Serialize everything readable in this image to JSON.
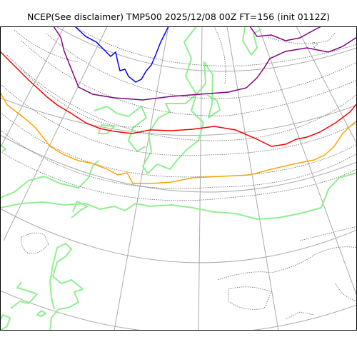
{
  "title": "NCEP(See disclaimer) TMP500 2025/12/08 00Z FT=156 (init 0112Z)",
  "colors": {
    "frame": "#000000",
    "graticule": "#aaaaaa",
    "coastline": "#90ee90",
    "contour": "#666666",
    "isotherm_purple": "#800080",
    "isotherm_blue": "#0000ff",
    "isotherm_red": "#ff0000",
    "isotherm_orange": "#ffa500"
  },
  "layers": [
    "graticule",
    "coastline",
    "dotted-contours",
    "isotherm-purple",
    "isotherm-blue",
    "isotherm-red",
    "isotherm-orange"
  ]
}
